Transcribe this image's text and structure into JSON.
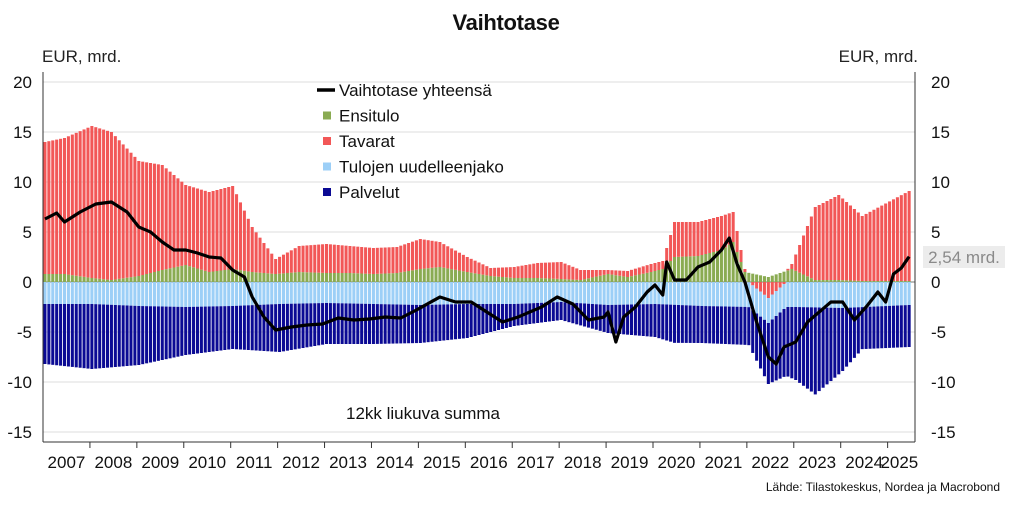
{
  "title": "Vaihtotase",
  "unit_left": "EUR, mrd.",
  "unit_right": "EUR, mrd.",
  "source": "Lähde: Tilastokeskus, Nordea ja Macrobond",
  "annotation": "12kk liukuva summa",
  "last_value_label": "2,54 mrd.",
  "chart_data": {
    "type": "bar",
    "stacked": true,
    "frequency": "monthly",
    "start": "2007-01",
    "end": "2025-06",
    "ylim": [
      -16,
      21
    ],
    "yticks": [
      -15,
      -10,
      -5,
      0,
      5,
      10,
      15,
      20
    ],
    "ytick_labels": [
      "-15",
      "-10",
      "-5",
      "0",
      "5",
      "10",
      "15",
      "20"
    ],
    "xtick_labels": [
      "2007",
      "2008",
      "2009",
      "2010",
      "2011",
      "2012",
      "2013",
      "2014",
      "2015",
      "2016",
      "2017",
      "2018",
      "2019",
      "2020",
      "2021",
      "2022",
      "2023",
      "2024",
      "2025"
    ],
    "grid": true,
    "legend_position": "top-center",
    "series": [
      {
        "name": "Vaihtotase yhteensä",
        "kind": "line",
        "color": "#000000",
        "anchors": [
          [
            "2007-01",
            6.3
          ],
          [
            "2007-04",
            6.9
          ],
          [
            "2007-06",
            6.0
          ],
          [
            "2007-10",
            7.0
          ],
          [
            "2008-02",
            7.8
          ],
          [
            "2008-06",
            8.0
          ],
          [
            "2008-10",
            7.0
          ],
          [
            "2009-01",
            5.5
          ],
          [
            "2009-04",
            5.0
          ],
          [
            "2009-07",
            4.0
          ],
          [
            "2009-10",
            3.2
          ],
          [
            "2010-01",
            3.2
          ],
          [
            "2010-04",
            2.9
          ],
          [
            "2010-07",
            2.5
          ],
          [
            "2010-10",
            2.4
          ],
          [
            "2011-01",
            1.2
          ],
          [
            "2011-04",
            0.5
          ],
          [
            "2011-06",
            -1.5
          ],
          [
            "2011-09",
            -3.5
          ],
          [
            "2011-12",
            -4.8
          ],
          [
            "2012-04",
            -4.5
          ],
          [
            "2012-08",
            -4.3
          ],
          [
            "2012-12",
            -4.2
          ],
          [
            "2013-04",
            -3.6
          ],
          [
            "2013-08",
            -3.8
          ],
          [
            "2013-12",
            -3.7
          ],
          [
            "2014-04",
            -3.5
          ],
          [
            "2014-08",
            -3.6
          ],
          [
            "2014-12",
            -2.8
          ],
          [
            "2015-06",
            -1.5
          ],
          [
            "2015-10",
            -2.0
          ],
          [
            "2016-02",
            -2.0
          ],
          [
            "2016-06",
            -3.0
          ],
          [
            "2016-10",
            -4.0
          ],
          [
            "2017-02",
            -3.5
          ],
          [
            "2017-08",
            -2.5
          ],
          [
            "2017-12",
            -1.5
          ],
          [
            "2018-04",
            -2.2
          ],
          [
            "2018-08",
            -3.8
          ],
          [
            "2018-12",
            -3.5
          ],
          [
            "2019-01",
            -3.0
          ],
          [
            "2019-03",
            -6.0
          ],
          [
            "2019-05",
            -3.5
          ],
          [
            "2019-08",
            -2.5
          ],
          [
            "2019-11",
            -1.0
          ],
          [
            "2020-01",
            -0.3
          ],
          [
            "2020-03",
            -1.3
          ],
          [
            "2020-04",
            2.0
          ],
          [
            "2020-06",
            0.2
          ],
          [
            "2020-09",
            0.2
          ],
          [
            "2020-12",
            1.5
          ],
          [
            "2021-03",
            2.0
          ],
          [
            "2021-06",
            3.2
          ],
          [
            "2021-08",
            4.4
          ],
          [
            "2021-10",
            1.8
          ],
          [
            "2021-12",
            0.0
          ],
          [
            "2022-03",
            -4.0
          ],
          [
            "2022-06",
            -7.5
          ],
          [
            "2022-08",
            -8.2
          ],
          [
            "2022-10",
            -6.5
          ],
          [
            "2023-01",
            -6.0
          ],
          [
            "2023-04",
            -4.0
          ],
          [
            "2023-07",
            -3.0
          ],
          [
            "2023-10",
            -2.0
          ],
          [
            "2024-01",
            -2.0
          ],
          [
            "2024-04",
            -3.8
          ],
          [
            "2024-07",
            -2.5
          ],
          [
            "2024-10",
            -1.0
          ],
          [
            "2024-12",
            -2.0
          ],
          [
            "2025-02",
            0.8
          ],
          [
            "2025-04",
            1.4
          ],
          [
            "2025-06",
            2.54
          ]
        ]
      },
      {
        "name": "Ensitulo",
        "kind": "bar",
        "color": "#8aab52",
        "anchors": [
          [
            "2007-01",
            0.8
          ],
          [
            "2007-06",
            0.8
          ],
          [
            "2008-01",
            0.4
          ],
          [
            "2008-06",
            0.2
          ],
          [
            "2009-01",
            0.6
          ],
          [
            "2009-07",
            1.2
          ],
          [
            "2010-01",
            1.7
          ],
          [
            "2010-07",
            1.0
          ],
          [
            "2011-01",
            1.3
          ],
          [
            "2011-06",
            1.0
          ],
          [
            "2011-12",
            0.8
          ],
          [
            "2012-06",
            1.0
          ],
          [
            "2013-01",
            0.9
          ],
          [
            "2013-07",
            0.9
          ],
          [
            "2014-01",
            0.8
          ],
          [
            "2014-07",
            0.9
          ],
          [
            "2015-01",
            1.3
          ],
          [
            "2015-06",
            1.5
          ],
          [
            "2016-01",
            1.0
          ],
          [
            "2016-07",
            0.6
          ],
          [
            "2017-01",
            0.4
          ],
          [
            "2017-07",
            0.4
          ],
          [
            "2018-01",
            0.3
          ],
          [
            "2018-06",
            0.2
          ],
          [
            "2019-01",
            0.8
          ],
          [
            "2019-06",
            0.5
          ],
          [
            "2019-12",
            1.0
          ],
          [
            "2020-03",
            1.3
          ],
          [
            "2020-06",
            2.5
          ],
          [
            "2020-12",
            2.6
          ],
          [
            "2021-06",
            3.2
          ],
          [
            "2021-09",
            4.0
          ],
          [
            "2021-12",
            1.0
          ],
          [
            "2022-06",
            0.5
          ],
          [
            "2022-12",
            1.3
          ],
          [
            "2023-06",
            0.2
          ],
          [
            "2023-12",
            0.2
          ],
          [
            "2024-06",
            0.1
          ],
          [
            "2025-06",
            0.1
          ]
        ]
      },
      {
        "name": "Tavarat",
        "kind": "bar",
        "color": "#f25757",
        "anchors": [
          [
            "2007-01",
            13.2
          ],
          [
            "2007-06",
            13.6
          ],
          [
            "2008-01",
            15.2
          ],
          [
            "2008-06",
            14.8
          ],
          [
            "2009-01",
            11.5
          ],
          [
            "2009-07",
            10.5
          ],
          [
            "2010-01",
            8.0
          ],
          [
            "2010-07",
            8.0
          ],
          [
            "2011-01",
            8.3
          ],
          [
            "2011-06",
            4.5
          ],
          [
            "2011-12",
            1.5
          ],
          [
            "2012-06",
            2.6
          ],
          [
            "2013-01",
            2.9
          ],
          [
            "2013-07",
            2.7
          ],
          [
            "2014-01",
            2.6
          ],
          [
            "2014-07",
            2.6
          ],
          [
            "2015-01",
            3.0
          ],
          [
            "2015-06",
            2.5
          ],
          [
            "2016-01",
            1.5
          ],
          [
            "2016-07",
            0.8
          ],
          [
            "2017-01",
            1.1
          ],
          [
            "2017-07",
            1.5
          ],
          [
            "2018-01",
            1.7
          ],
          [
            "2018-06",
            1.0
          ],
          [
            "2019-01",
            0.4
          ],
          [
            "2019-06",
            0.6
          ],
          [
            "2019-12",
            0.8
          ],
          [
            "2020-03",
            0.8
          ],
          [
            "2020-06",
            3.5
          ],
          [
            "2020-12",
            3.4
          ],
          [
            "2021-06",
            3.4
          ],
          [
            "2021-09",
            3.0
          ],
          [
            "2021-12",
            0.3
          ],
          [
            "2022-06",
            -1.6
          ],
          [
            "2022-12",
            0.5
          ],
          [
            "2023-06",
            7.3
          ],
          [
            "2023-12",
            8.5
          ],
          [
            "2024-06",
            6.5
          ],
          [
            "2025-06",
            9.0
          ]
        ]
      },
      {
        "name": "Tulojen uudelleenjako",
        "kind": "bar",
        "color": "#9ccff7",
        "anchors": [
          [
            "2007-01",
            -2.2
          ],
          [
            "2008-01",
            -2.2
          ],
          [
            "2009-01",
            -2.4
          ],
          [
            "2010-01",
            -2.5
          ],
          [
            "2011-01",
            -2.4
          ],
          [
            "2012-01",
            -2.2
          ],
          [
            "2013-01",
            -2.1
          ],
          [
            "2014-01",
            -2.2
          ],
          [
            "2015-01",
            -2.3
          ],
          [
            "2016-01",
            -2.2
          ],
          [
            "2017-01",
            -2.2
          ],
          [
            "2018-01",
            -2.0
          ],
          [
            "2019-01",
            -2.3
          ],
          [
            "2020-01",
            -2.2
          ],
          [
            "2021-01",
            -2.4
          ],
          [
            "2022-01",
            -2.5
          ],
          [
            "2023-01",
            -2.5
          ],
          [
            "2024-01",
            -2.6
          ],
          [
            "2025-06",
            -2.3
          ]
        ]
      },
      {
        "name": "Palvelut",
        "kind": "bar",
        "color": "#0b0a94",
        "anchors": [
          [
            "2007-01",
            -6.0
          ],
          [
            "2008-01",
            -6.5
          ],
          [
            "2009-01",
            -5.9
          ],
          [
            "2010-01",
            -4.8
          ],
          [
            "2011-01",
            -4.3
          ],
          [
            "2012-01",
            -4.8
          ],
          [
            "2013-01",
            -4.1
          ],
          [
            "2014-01",
            -4.0
          ],
          [
            "2015-01",
            -3.8
          ],
          [
            "2016-01",
            -3.4
          ],
          [
            "2017-01",
            -2.2
          ],
          [
            "2018-01",
            -1.8
          ],
          [
            "2019-01",
            -2.8
          ],
          [
            "2020-01",
            -3.3
          ],
          [
            "2020-06",
            -3.8
          ],
          [
            "2021-01",
            -3.7
          ],
          [
            "2022-01",
            -3.8
          ],
          [
            "2022-06",
            -6.1
          ],
          [
            "2023-01",
            -7.3
          ],
          [
            "2023-06",
            -8.7
          ],
          [
            "2024-01",
            -6.3
          ],
          [
            "2024-06",
            -4.2
          ],
          [
            "2025-06",
            -4.2
          ]
        ]
      }
    ]
  }
}
